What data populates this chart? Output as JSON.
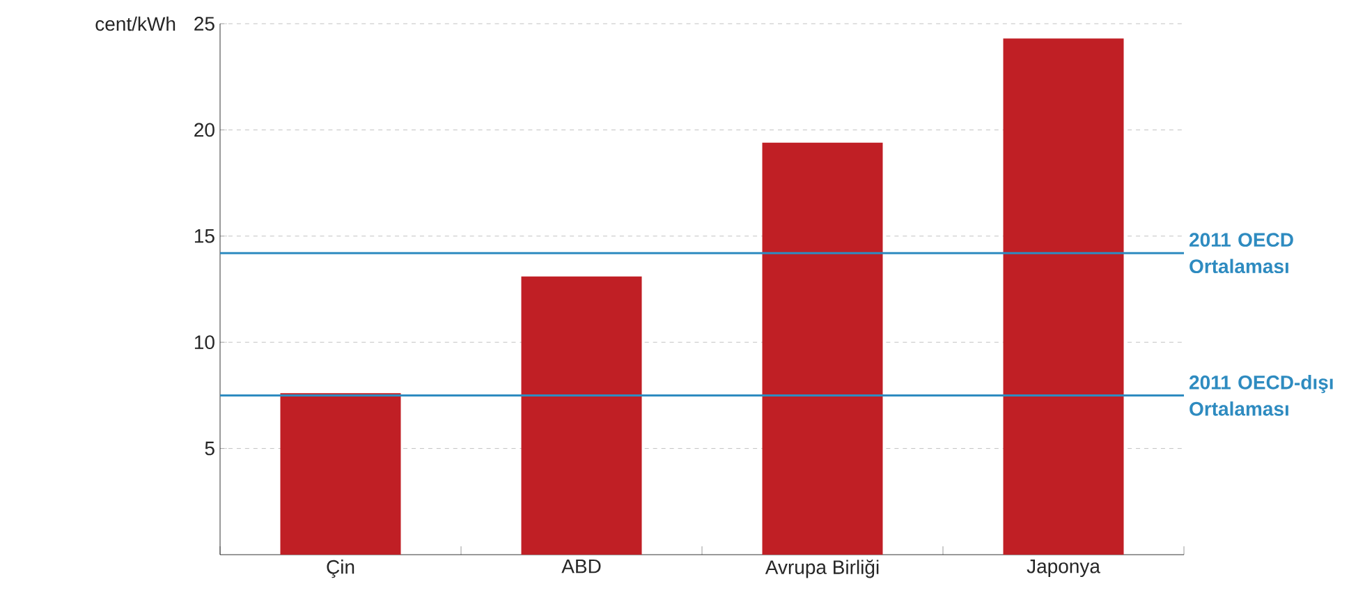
{
  "chart_data": {
    "type": "bar",
    "ylabel": "cent/kWh",
    "categories": [
      "Çin",
      "ABD",
      "Avrupa Birliği",
      "Japonya"
    ],
    "values": [
      7.6,
      13.1,
      19.4,
      24.3
    ],
    "color": "#c01f25",
    "ylim": [
      0,
      25
    ],
    "yticks": [
      5,
      10,
      15,
      20,
      25
    ],
    "grid": "y",
    "ref_lines": [
      {
        "axis": "y",
        "value": 14.2,
        "label": "2011 OECD Ortalaması",
        "color": "#2e8bc0"
      },
      {
        "axis": "y",
        "value": 7.5,
        "label": "2011 OECD-dışı Ortalaması",
        "color": "#2e8bc0"
      }
    ]
  }
}
